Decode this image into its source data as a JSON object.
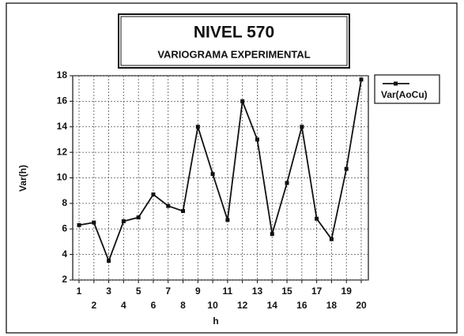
{
  "chart_data": {
    "type": "line",
    "title": "NIVEL 570",
    "subtitle": "VARIOGRAMA EXPERIMENTAL",
    "x_label": "h",
    "y_label": "Var(h)",
    "categories": [
      "1",
      "2",
      "3",
      "4",
      "5",
      "6",
      "7",
      "8",
      "9",
      "10",
      "11",
      "12",
      "13",
      "14",
      "15",
      "16",
      "17",
      "18",
      "19",
      "20"
    ],
    "series": [
      {
        "name": "Var(AoCu)",
        "color": "#111111",
        "values": [
          6.3,
          6.5,
          3.5,
          6.6,
          6.9,
          8.7,
          7.8,
          7.4,
          14.0,
          10.3,
          6.7,
          16.0,
          13.0,
          5.6,
          9.6,
          14.0,
          6.8,
          5.2,
          10.7,
          17.7
        ]
      }
    ],
    "ylim": [
      2,
      18
    ],
    "yticks": [
      2,
      4,
      6,
      8,
      10,
      12,
      14,
      16,
      18
    ],
    "grid": true,
    "legend": "right"
  }
}
